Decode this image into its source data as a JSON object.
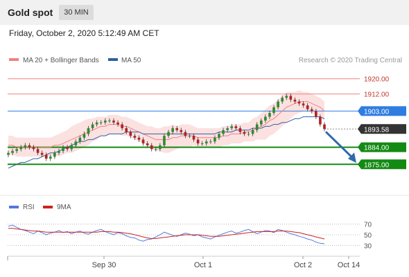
{
  "header": {
    "title": "Gold spot",
    "timeframe": "30 MIN"
  },
  "datetime": "Friday, October 2, 2020 5:12:49 AM CET",
  "legend": {
    "ma20_label": "MA 20 + Bollinger Bands",
    "ma50_label": "MA 50",
    "ma20_color": "#f08080",
    "ma50_color": "#2f5f9f"
  },
  "watermark": "Research © 2020 Trading Central",
  "colors": {
    "resistance": "#f08080",
    "pivot": "#2f7de1",
    "support": "#138a13",
    "last_price": "#333333",
    "arrow": "#2f6ba8",
    "candle_up": "#2e8b2e",
    "candle_down": "#b22222",
    "bollinger_fill": "#fcdcdc"
  },
  "chart_data": [
    {
      "type": "candlestick",
      "title": "Gold spot",
      "x_ticks": [
        "Sep 30",
        "Oct 1",
        "Oct 2",
        "Oct 14"
      ],
      "ylim": [
        1866,
        1925
      ],
      "levels": [
        {
          "value": 1920.0,
          "label": "1920.00",
          "kind": "resistance"
        },
        {
          "value": 1912.0,
          "label": "1912.00",
          "kind": "resistance"
        },
        {
          "value": 1903.0,
          "label": "1903.00",
          "kind": "pivot"
        },
        {
          "value": 1893.58,
          "label": "1893.58",
          "kind": "last"
        },
        {
          "value": 1884.0,
          "label": "1884.00",
          "kind": "support"
        },
        {
          "value": 1875.0,
          "label": "1875.00",
          "kind": "support"
        }
      ],
      "close_series": [
        1881,
        1882,
        1883,
        1884,
        1885,
        1884,
        1883,
        1881,
        1880,
        1878,
        1879,
        1881,
        1882,
        1884,
        1883,
        1885,
        1887,
        1889,
        1891,
        1894,
        1896,
        1897,
        1897,
        1898,
        1898,
        1897,
        1896,
        1894,
        1892,
        1890,
        1889,
        1888,
        1886,
        1885,
        1883,
        1883,
        1885,
        1890,
        1892,
        1894,
        1893,
        1892,
        1890,
        1890,
        1888,
        1886,
        1886,
        1887,
        1887,
        1889,
        1891,
        1893,
        1894,
        1895,
        1894,
        1892,
        1891,
        1891,
        1893,
        1896,
        1898,
        1900,
        1902,
        1905,
        1908,
        1910,
        1911,
        1909,
        1908,
        1907,
        1906,
        1904,
        1903,
        1900,
        1896,
        1893.58
      ],
      "ma20_series": [
        1885,
        1885,
        1884,
        1884,
        1884,
        1884,
        1884,
        1884,
        1884,
        1884,
        1884,
        1885,
        1885,
        1886,
        1887,
        1888,
        1889,
        1890,
        1891,
        1892,
        1893,
        1894,
        1895,
        1895,
        1896,
        1896,
        1896,
        1895,
        1895,
        1894,
        1893,
        1892,
        1891,
        1890,
        1889,
        1888,
        1888,
        1888,
        1888,
        1889,
        1889,
        1890,
        1890,
        1890,
        1890,
        1889,
        1889,
        1889,
        1889,
        1889,
        1889,
        1890,
        1890,
        1891,
        1891,
        1891,
        1892,
        1892,
        1893,
        1894,
        1895,
        1896,
        1898,
        1899,
        1901,
        1903,
        1905,
        1906,
        1907,
        1908,
        1908,
        1908,
        1907,
        1906,
        1905,
        1903
      ],
      "ma50_series": [
        1873,
        1874,
        1875,
        1876,
        1876,
        1877,
        1878,
        1878,
        1879,
        1880,
        1881,
        1881,
        1882,
        1883,
        1884,
        1885,
        1886,
        1887,
        1887,
        1888,
        1888,
        1889,
        1890,
        1890,
        1891,
        1891,
        1891,
        1891,
        1892,
        1892,
        1892,
        1892,
        1891,
        1891,
        1891,
        1891,
        1891,
        1891,
        1891,
        1891,
        1891,
        1891,
        1891,
        1891,
        1891,
        1891,
        1891,
        1891,
        1891,
        1891,
        1892,
        1892,
        1892,
        1892,
        1893,
        1893,
        1893,
        1893,
        1894,
        1894,
        1894,
        1895,
        1895,
        1896,
        1896,
        1897,
        1897,
        1898,
        1899,
        1899,
        1900,
        1900,
        1900,
        1900,
        1900,
        1899
      ],
      "bollinger_band_width": [
        5,
        5,
        5,
        5,
        5,
        5,
        5,
        5,
        5,
        5,
        5,
        5,
        6,
        6,
        6,
        7,
        7,
        7,
        7,
        7,
        6,
        6,
        5,
        5,
        5,
        5,
        5,
        5,
        5,
        5,
        5,
        5,
        5,
        5,
        6,
        6,
        6,
        7,
        7,
        7,
        6,
        6,
        6,
        6,
        5,
        5,
        5,
        5,
        5,
        5,
        5,
        5,
        5,
        5,
        5,
        5,
        5,
        5,
        6,
        6,
        7,
        8,
        8,
        8,
        8,
        8,
        8,
        7,
        6,
        6,
        5,
        5,
        5,
        5,
        5,
        5
      ]
    },
    {
      "type": "line",
      "legend": [
        "RSI",
        "9MA"
      ],
      "ylim": [
        20,
        80
      ],
      "levels": [
        70,
        50,
        30
      ],
      "series": [
        {
          "name": "RSI",
          "color": "#5577dd",
          "values": [
            66,
            68,
            64,
            60,
            58,
            55,
            52,
            57,
            54,
            50,
            53,
            55,
            58,
            54,
            56,
            52,
            55,
            57,
            53,
            51,
            55,
            58,
            60,
            56,
            53,
            50,
            54,
            52,
            48,
            45,
            44,
            40,
            38,
            41,
            42,
            46,
            50,
            55,
            52,
            49,
            47,
            50,
            53,
            51,
            48,
            50,
            46,
            44,
            42,
            46,
            49,
            52,
            55,
            57,
            53,
            55,
            58,
            60,
            56,
            52,
            55,
            58,
            57,
            54,
            60,
            58,
            55,
            52,
            50,
            47,
            45,
            42,
            40,
            36,
            34,
            33
          ]
        },
        {
          "name": "9MA",
          "color": "#cc2222",
          "values": [
            62,
            62,
            61,
            60,
            59,
            58,
            57,
            57,
            56,
            55,
            55,
            55,
            55,
            55,
            55,
            55,
            55,
            55,
            55,
            55,
            55,
            55,
            56,
            56,
            56,
            55,
            55,
            54,
            53,
            52,
            50,
            48,
            46,
            44,
            43,
            43,
            44,
            45,
            46,
            47,
            48,
            49,
            50,
            50,
            50,
            50,
            49,
            48,
            47,
            47,
            47,
            48,
            49,
            50,
            51,
            52,
            53,
            54,
            55,
            56,
            56,
            56,
            56,
            56,
            57,
            57,
            57,
            56,
            55,
            54,
            52,
            50,
            48,
            46,
            44,
            42
          ]
        }
      ]
    }
  ]
}
